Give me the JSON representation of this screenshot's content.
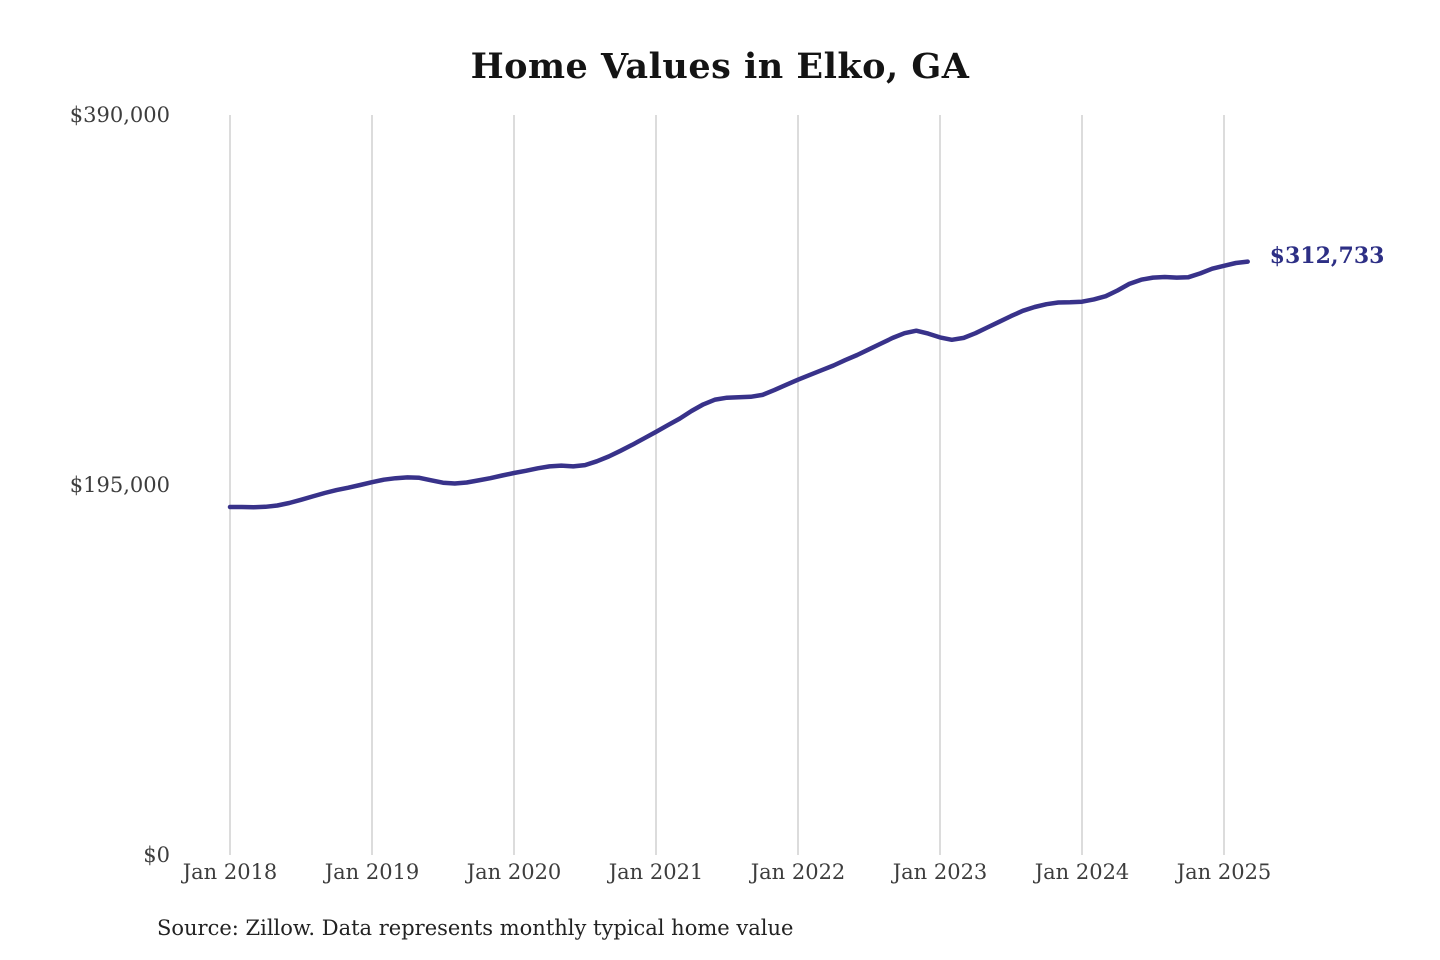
{
  "header": {
    "title": "Home Values in Elko, GA"
  },
  "footer": {
    "source_text": "Source: Zillow. Data represents monthly typical home value"
  },
  "colors": {
    "background": "#ffffff",
    "line": "#38328a",
    "end_label": "#2d2f85",
    "gridline": "#c9c9c9",
    "tick_text": "#3d3d3d",
    "title_text": "#141414"
  },
  "chart_data": {
    "type": "line",
    "title": "Home Values in Elko, GA",
    "xlabel": "",
    "ylabel": "",
    "ylim": [
      0,
      390000
    ],
    "grid": "vertical-only",
    "legend": "none",
    "x_tick_labels": [
      "Jan 2018",
      "Jan 2019",
      "Jan 2020",
      "Jan 2021",
      "Jan 2022",
      "Jan 2023",
      "Jan 2024",
      "Jan 2025"
    ],
    "y_ticks": [
      {
        "label": "$390,000",
        "value": 390000
      },
      {
        "label": "$195,000",
        "value": 195000
      },
      {
        "label": "$0",
        "value": 0
      }
    ],
    "end_label": "$312,733",
    "end_value": 312733,
    "series": [
      {
        "name": "Monthly typical home value",
        "start_month": "Jan 2018",
        "end_month": "Mar 2025",
        "interval": "monthly",
        "values": [
          183400,
          183400,
          183300,
          183500,
          184200,
          185500,
          187200,
          189000,
          190800,
          192300,
          193600,
          195000,
          196500,
          197800,
          198600,
          199000,
          198800,
          197500,
          196200,
          195800,
          196300,
          197400,
          198600,
          200000,
          201300,
          202500,
          203800,
          204800,
          205200,
          204800,
          205500,
          207500,
          210000,
          213000,
          216200,
          219600,
          223000,
          226500,
          230000,
          234000,
          237500,
          240000,
          241000,
          241200,
          241500,
          242500,
          245000,
          247800,
          250500,
          253000,
          255500,
          258000,
          260800,
          263500,
          266500,
          269500,
          272500,
          275000,
          276300,
          274800,
          272800,
          271500,
          272500,
          275000,
          278000,
          281000,
          284000,
          286800,
          288800,
          290300,
          291200,
          291300,
          291600,
          292800,
          294500,
          297500,
          301000,
          303200,
          304300,
          304600,
          304300,
          304500,
          306500,
          309000,
          310500,
          312000,
          312733
        ]
      }
    ]
  }
}
